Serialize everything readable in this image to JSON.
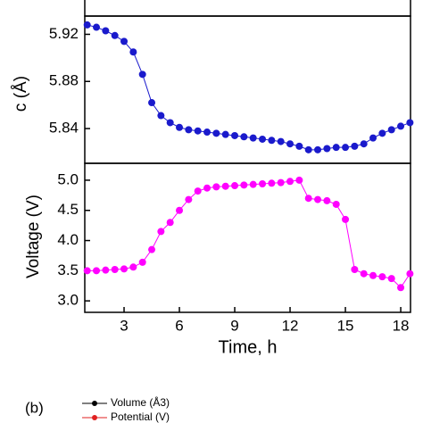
{
  "charts": [
    {
      "type": "line",
      "ylabel": "c (Å)",
      "color": "#1a1acc",
      "x": [
        1,
        1.5,
        2,
        2.5,
        3,
        3.5,
        4,
        4.5,
        5,
        5.5,
        6,
        6.5,
        7,
        7.5,
        8,
        8.5,
        9,
        9.5,
        10,
        10.5,
        11,
        11.5,
        12,
        12.5,
        13,
        13.5,
        14,
        14.5,
        15,
        15.5,
        16,
        16.5,
        17,
        17.5,
        18,
        18.5
      ],
      "series": [
        {
          "color": "#1a1acc",
          "values": [
            5.928,
            5.926,
            5.923,
            5.919,
            5.914,
            5.905,
            5.886,
            5.862,
            5.851,
            5.845,
            5.841,
            5.839,
            5.838,
            5.837,
            5.836,
            5.835,
            5.834,
            5.833,
            5.832,
            5.831,
            5.83,
            5.829,
            5.827,
            5.825,
            5.822,
            5.822,
            5.823,
            5.824,
            5.824,
            5.825,
            5.827,
            5.832,
            5.836,
            5.839,
            5.842,
            5.845
          ]
        }
      ],
      "xlim": [
        0.87,
        18.53
      ],
      "ylim": [
        5.8105,
        5.9355
      ],
      "yticks": [
        5.92,
        5.88,
        5.84
      ]
    },
    {
      "type": "line",
      "ylabel": "Voltage (V)",
      "xlabel": "Time, h",
      "x": [
        1,
        1.5,
        2,
        2.5,
        3,
        3.5,
        4,
        4.5,
        5,
        5.5,
        6,
        6.5,
        7,
        7.5,
        8,
        8.5,
        9,
        9.5,
        10,
        10.5,
        11,
        11.5,
        12,
        12.5,
        13,
        13.5,
        14,
        14.5,
        15,
        15.5,
        16,
        16.5,
        17,
        17.5,
        18,
        18.5
      ],
      "series": [
        {
          "color": "#ff00ff",
          "values": [
            3.5,
            3.5,
            3.51,
            3.52,
            3.53,
            3.56,
            3.64,
            3.85,
            4.15,
            4.3,
            4.5,
            4.68,
            4.82,
            4.87,
            4.89,
            4.9,
            4.91,
            4.92,
            4.93,
            4.94,
            4.95,
            4.96,
            4.98,
            5.0,
            4.7,
            4.68,
            4.66,
            4.6,
            4.35,
            3.52,
            3.45,
            3.42,
            3.4,
            3.37,
            3.22,
            3.45
          ]
        }
      ],
      "xlim": [
        0.87,
        18.53
      ],
      "ylim": [
        2.81,
        5.28
      ],
      "yticks": [
        {
          "value": 5,
          "label": "5.0"
        },
        4.5,
        {
          "value": 4,
          "label": "4.0"
        },
        3.5,
        {
          "value": 3,
          "label": "3.0"
        }
      ],
      "xticks": [
        3,
        6,
        9,
        12,
        15,
        18
      ]
    }
  ],
  "panel_b": {
    "label": "(b)",
    "legend": [
      {
        "name": "Volume (Å3)",
        "color": "#000000"
      },
      {
        "name": "Potential (V)",
        "color": "#e02020"
      }
    ]
  }
}
